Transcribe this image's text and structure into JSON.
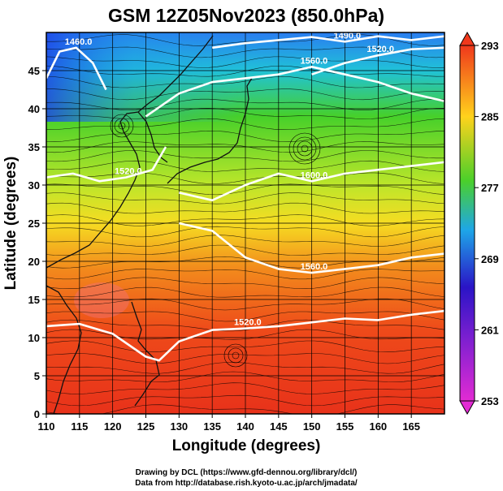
{
  "chart_data": {
    "type": "heatmap",
    "title": "GSM 12Z05Nov2023 (850.0hPa)",
    "xlabel": "Longitude (degrees)",
    "ylabel": "Latitude (degrees)",
    "xlim": [
      110,
      170
    ],
    "ylim": [
      0,
      50
    ],
    "xticks": [
      "110",
      "115",
      "120",
      "125",
      "130",
      "135",
      "140",
      "145",
      "150",
      "155",
      "160",
      "165"
    ],
    "yticks": [
      "0",
      "5",
      "10",
      "15",
      "20",
      "25",
      "30",
      "35",
      "40",
      "45"
    ],
    "grid": true,
    "colorbar": {
      "ticks": [
        "253",
        "261",
        "269",
        "277",
        "285",
        "293"
      ],
      "range": [
        253,
        293
      ],
      "colors": [
        "#e22bd3",
        "#2a14c6",
        "#1ea6e8",
        "#4bd02a",
        "#ffd21c",
        "#f0381c"
      ]
    },
    "contours": [
      {
        "label": "1460.0",
        "value": 1460,
        "lon": [
          110,
          112,
          114.5,
          117,
          119
        ],
        "lat": [
          44,
          47.5,
          48,
          46,
          42.5
        ]
      },
      {
        "label": "1490.0",
        "value": 1490,
        "lon": [
          135,
          140,
          145,
          150,
          155,
          160,
          165,
          170
        ],
        "lat": [
          48,
          48.6,
          49,
          49.4,
          48.8,
          49.5,
          49,
          49.5
        ]
      },
      {
        "label": "1520.0",
        "value": 1520,
        "lon": [
          150,
          155,
          160,
          165,
          170
        ],
        "lat": [
          44.5,
          46,
          47,
          47.8,
          48
        ]
      },
      {
        "label": "1560.0",
        "value": 1560,
        "lon": [
          125,
          130,
          135,
          140,
          145,
          150,
          155,
          160,
          165,
          170
        ],
        "lat": [
          39,
          42,
          43.5,
          44,
          44.5,
          45.5,
          44.5,
          43.5,
          42,
          41
        ]
      },
      {
        "label": "1600.0",
        "value": 1600,
        "lon": [
          130,
          135,
          140,
          145,
          150,
          155,
          160,
          165,
          170
        ],
        "lat": [
          29,
          28,
          30,
          31.5,
          30.5,
          31.5,
          32,
          32.5,
          33
        ]
      },
      {
        "label": "1520.0",
        "value": 1520,
        "lon": [
          110,
          114,
          118,
          122,
          126,
          128
        ],
        "lat": [
          31,
          31.5,
          30.5,
          31,
          32,
          35
        ]
      },
      {
        "label": "1560.0",
        "value": 1560,
        "lon": [
          130,
          135,
          140,
          145,
          150,
          155,
          160,
          165,
          170
        ],
        "lat": [
          25,
          24,
          20.5,
          19,
          18.5,
          19,
          19.5,
          20.5,
          21
        ]
      },
      {
        "label": "1520.0",
        "value": 1520,
        "lon": [
          110,
          115,
          120,
          125,
          127,
          130,
          135,
          140,
          145,
          150,
          155,
          160,
          165,
          170
        ],
        "lat": [
          11.5,
          11.8,
          10.5,
          7.5,
          7,
          9.5,
          11,
          11.2,
          11.5,
          12,
          12.5,
          12.3,
          13,
          13.5
        ]
      }
    ]
  },
  "credits": {
    "line1": "Drawing by DCL (https://www.gfd-dennou.org/library/dcl/)",
    "line2": "Data from http://database.rish.kyoto-u.ac.jp/arch/jmadata/"
  }
}
